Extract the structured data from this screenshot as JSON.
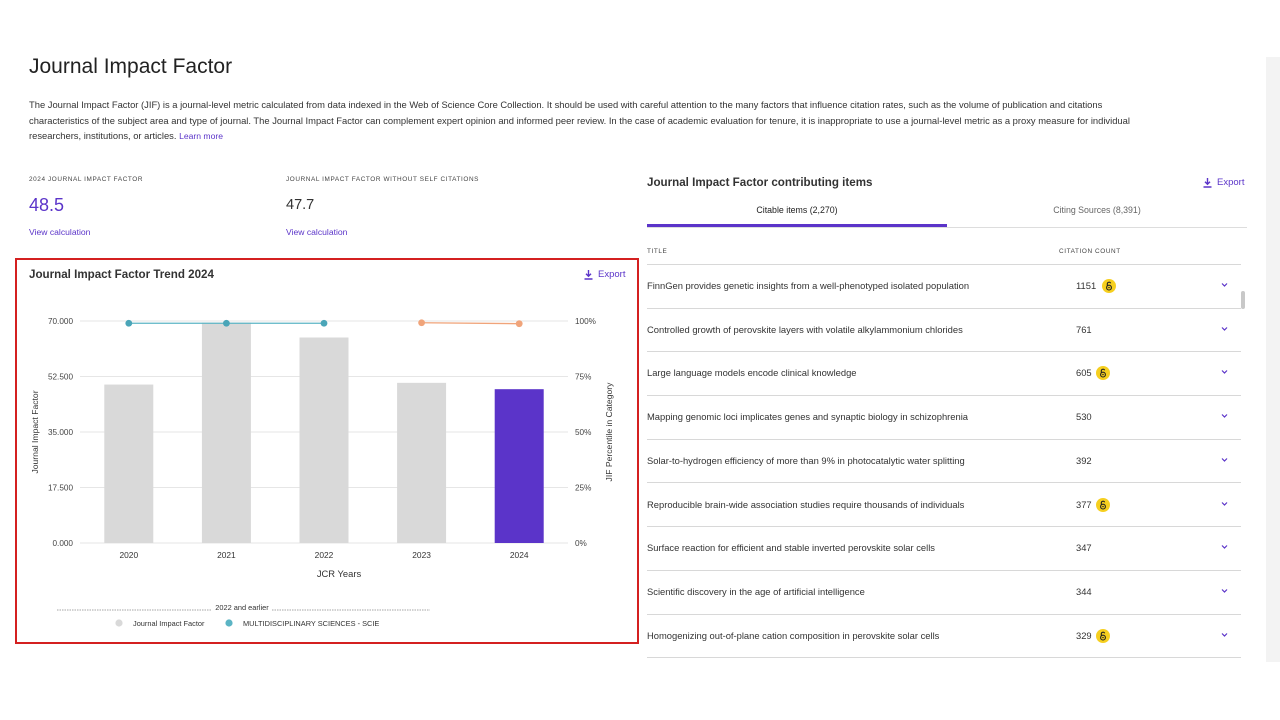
{
  "page": {
    "title": "Journal Impact Factor",
    "intro": "The Journal Impact Factor (JIF) is a journal-level metric calculated from data indexed in the Web of Science Core Collection. It should be used with careful attention to the many factors that influence citation rates, such as the volume of publication and citations characteristics of the subject area and type of journal. The Journal Impact Factor can complement expert opinion and informed peer review. In the case of academic evaluation for tenure, it is inappropriate to use a journal-level metric as a proxy measure for individual researchers, institutions, or articles.",
    "learn_more": "Learn more"
  },
  "metrics": [
    {
      "label": "2024 Journal Impact Factor",
      "value": "48.5",
      "link": "View calculation",
      "color": "#5b34c9"
    },
    {
      "label": "Journal Impact Factor without self citations",
      "value": "47.7",
      "link": "View calculation",
      "color": "#333333"
    }
  ],
  "trend": {
    "title": "Journal Impact Factor Trend 2024",
    "export_label": "Export"
  },
  "chart_data": {
    "type": "bar",
    "categories": [
      "2020",
      "2021",
      "2022",
      "2023",
      "2024"
    ],
    "series": [
      {
        "name": "Journal Impact Factor",
        "values": [
          49.962,
          69.504,
          64.8,
          50.5,
          48.5
        ],
        "colors": [
          "#d9d9d9",
          "#d9d9d9",
          "#d9d9d9",
          "#d9d9d9",
          "#5b34c9"
        ]
      },
      {
        "name": "MULTIDISCIPLINARY SCIENCES - SCIE",
        "axis": "right",
        "values": [
          99,
          99,
          99,
          99.2,
          98.8
        ],
        "color": "#5bb4c4",
        "segment_colors": [
          "#5bb4c4",
          "#5bb4c4",
          "#5bb4c4",
          "#f0a47a",
          "#f0a47a"
        ],
        "point_colors": [
          "#4aa5b8",
          "#4aa5b8",
          "#4aa5b8",
          "#f0a47a",
          "#f0a47a"
        ],
        "break_after": "2022"
      }
    ],
    "ylim": [
      0,
      70
    ],
    "yticks": [
      "0.000",
      "17.500",
      "35.000",
      "52.500",
      "70.000"
    ],
    "y2ticks": [
      "0%",
      "25%",
      "50%",
      "75%",
      "100%"
    ],
    "ylabel": "Journal Impact Factor",
    "y2label": "JIF Percentile in Category",
    "xlabel": "JCR Years",
    "legend_group_label": "2022 and earlier",
    "legend_placement": "bottom"
  },
  "contrib": {
    "title": "Journal Impact Factor contributing items",
    "export_label": "Export",
    "tabs": [
      {
        "label": "Citable items (2,270)",
        "active": true
      },
      {
        "label": "Citing Sources (8,391)",
        "active": false
      }
    ],
    "columns": {
      "title": "Title",
      "count": "Citation count"
    },
    "rows": [
      {
        "title": "FinnGen provides genetic insights from a well-phenotyped isolated population",
        "count": "1151",
        "oa": true
      },
      {
        "title": "Controlled growth of perovskite layers with volatile alkylammonium chlorides",
        "count": "761",
        "oa": false
      },
      {
        "title": "Large language models encode clinical knowledge",
        "count": "605",
        "oa": true
      },
      {
        "title": "Mapping genomic loci implicates genes and synaptic biology in schizophrenia",
        "count": "530",
        "oa": false
      },
      {
        "title": "Solar-to-hydrogen efficiency of more than 9% in photocatalytic water splitting",
        "count": "392",
        "oa": false
      },
      {
        "title": "Reproducible brain-wide association studies require thousands of individuals",
        "count": "377",
        "oa": true
      },
      {
        "title": "Surface reaction for efficient and stable inverted perovskite solar cells",
        "count": "347",
        "oa": false
      },
      {
        "title": "Scientific discovery in the age of artificial intelligence",
        "count": "344",
        "oa": false
      },
      {
        "title": "Homogenizing out-of-plane cation composition in perovskite solar cells",
        "count": "329",
        "oa": true
      }
    ]
  }
}
